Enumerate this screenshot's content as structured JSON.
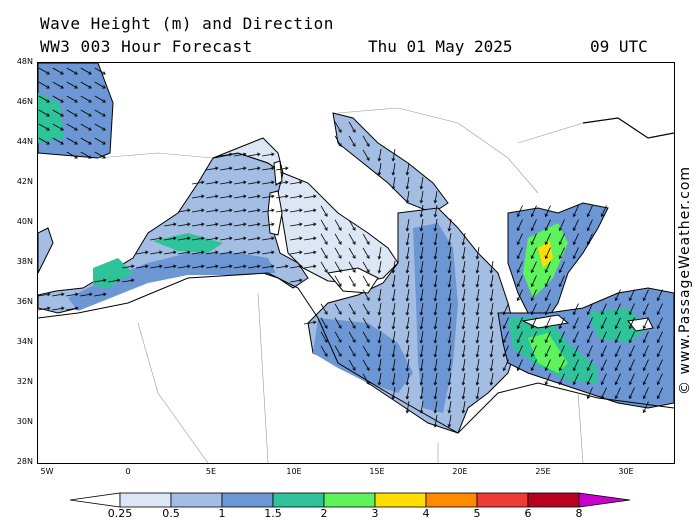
{
  "header": {
    "title_line1": "Wave Height (m) and Direction",
    "title_line2": "WW3 003 Hour Forecast",
    "date": "Thu 01 May 2025",
    "time": "09 UTC"
  },
  "credit": "© www.PassageWeather.com",
  "axes": {
    "lat_labels": [
      "48N",
      "46N",
      "44N",
      "42N",
      "40N",
      "38N",
      "36N",
      "34N",
      "32N",
      "30N",
      "28N"
    ],
    "lon_labels": [
      "5W",
      "0",
      "5E",
      "10E",
      "15E",
      "20E",
      "25E",
      "30E"
    ]
  },
  "legend": {
    "labels": [
      "0.25",
      "0.5",
      "1",
      "1.5",
      "2",
      "3",
      "4",
      "5",
      "6",
      "8"
    ],
    "colors": [
      "#ffffff",
      "#dce6f5",
      "#a4bde3",
      "#6c97d4",
      "#2fc39a",
      "#5ef25c",
      "#ffdd00",
      "#ff8a00",
      "#ef3a3a",
      "#b8001f",
      "#cc00cc"
    ]
  },
  "map_colors": {
    "land": "#ffffff",
    "calm_sea": "#dce6f5",
    "sea_low": "#a4bde3",
    "sea_mid": "#6c97d4",
    "sea_high": "#2fc39a",
    "sea_peak": "#5ef25c",
    "sea_max": "#ffdd00"
  }
}
